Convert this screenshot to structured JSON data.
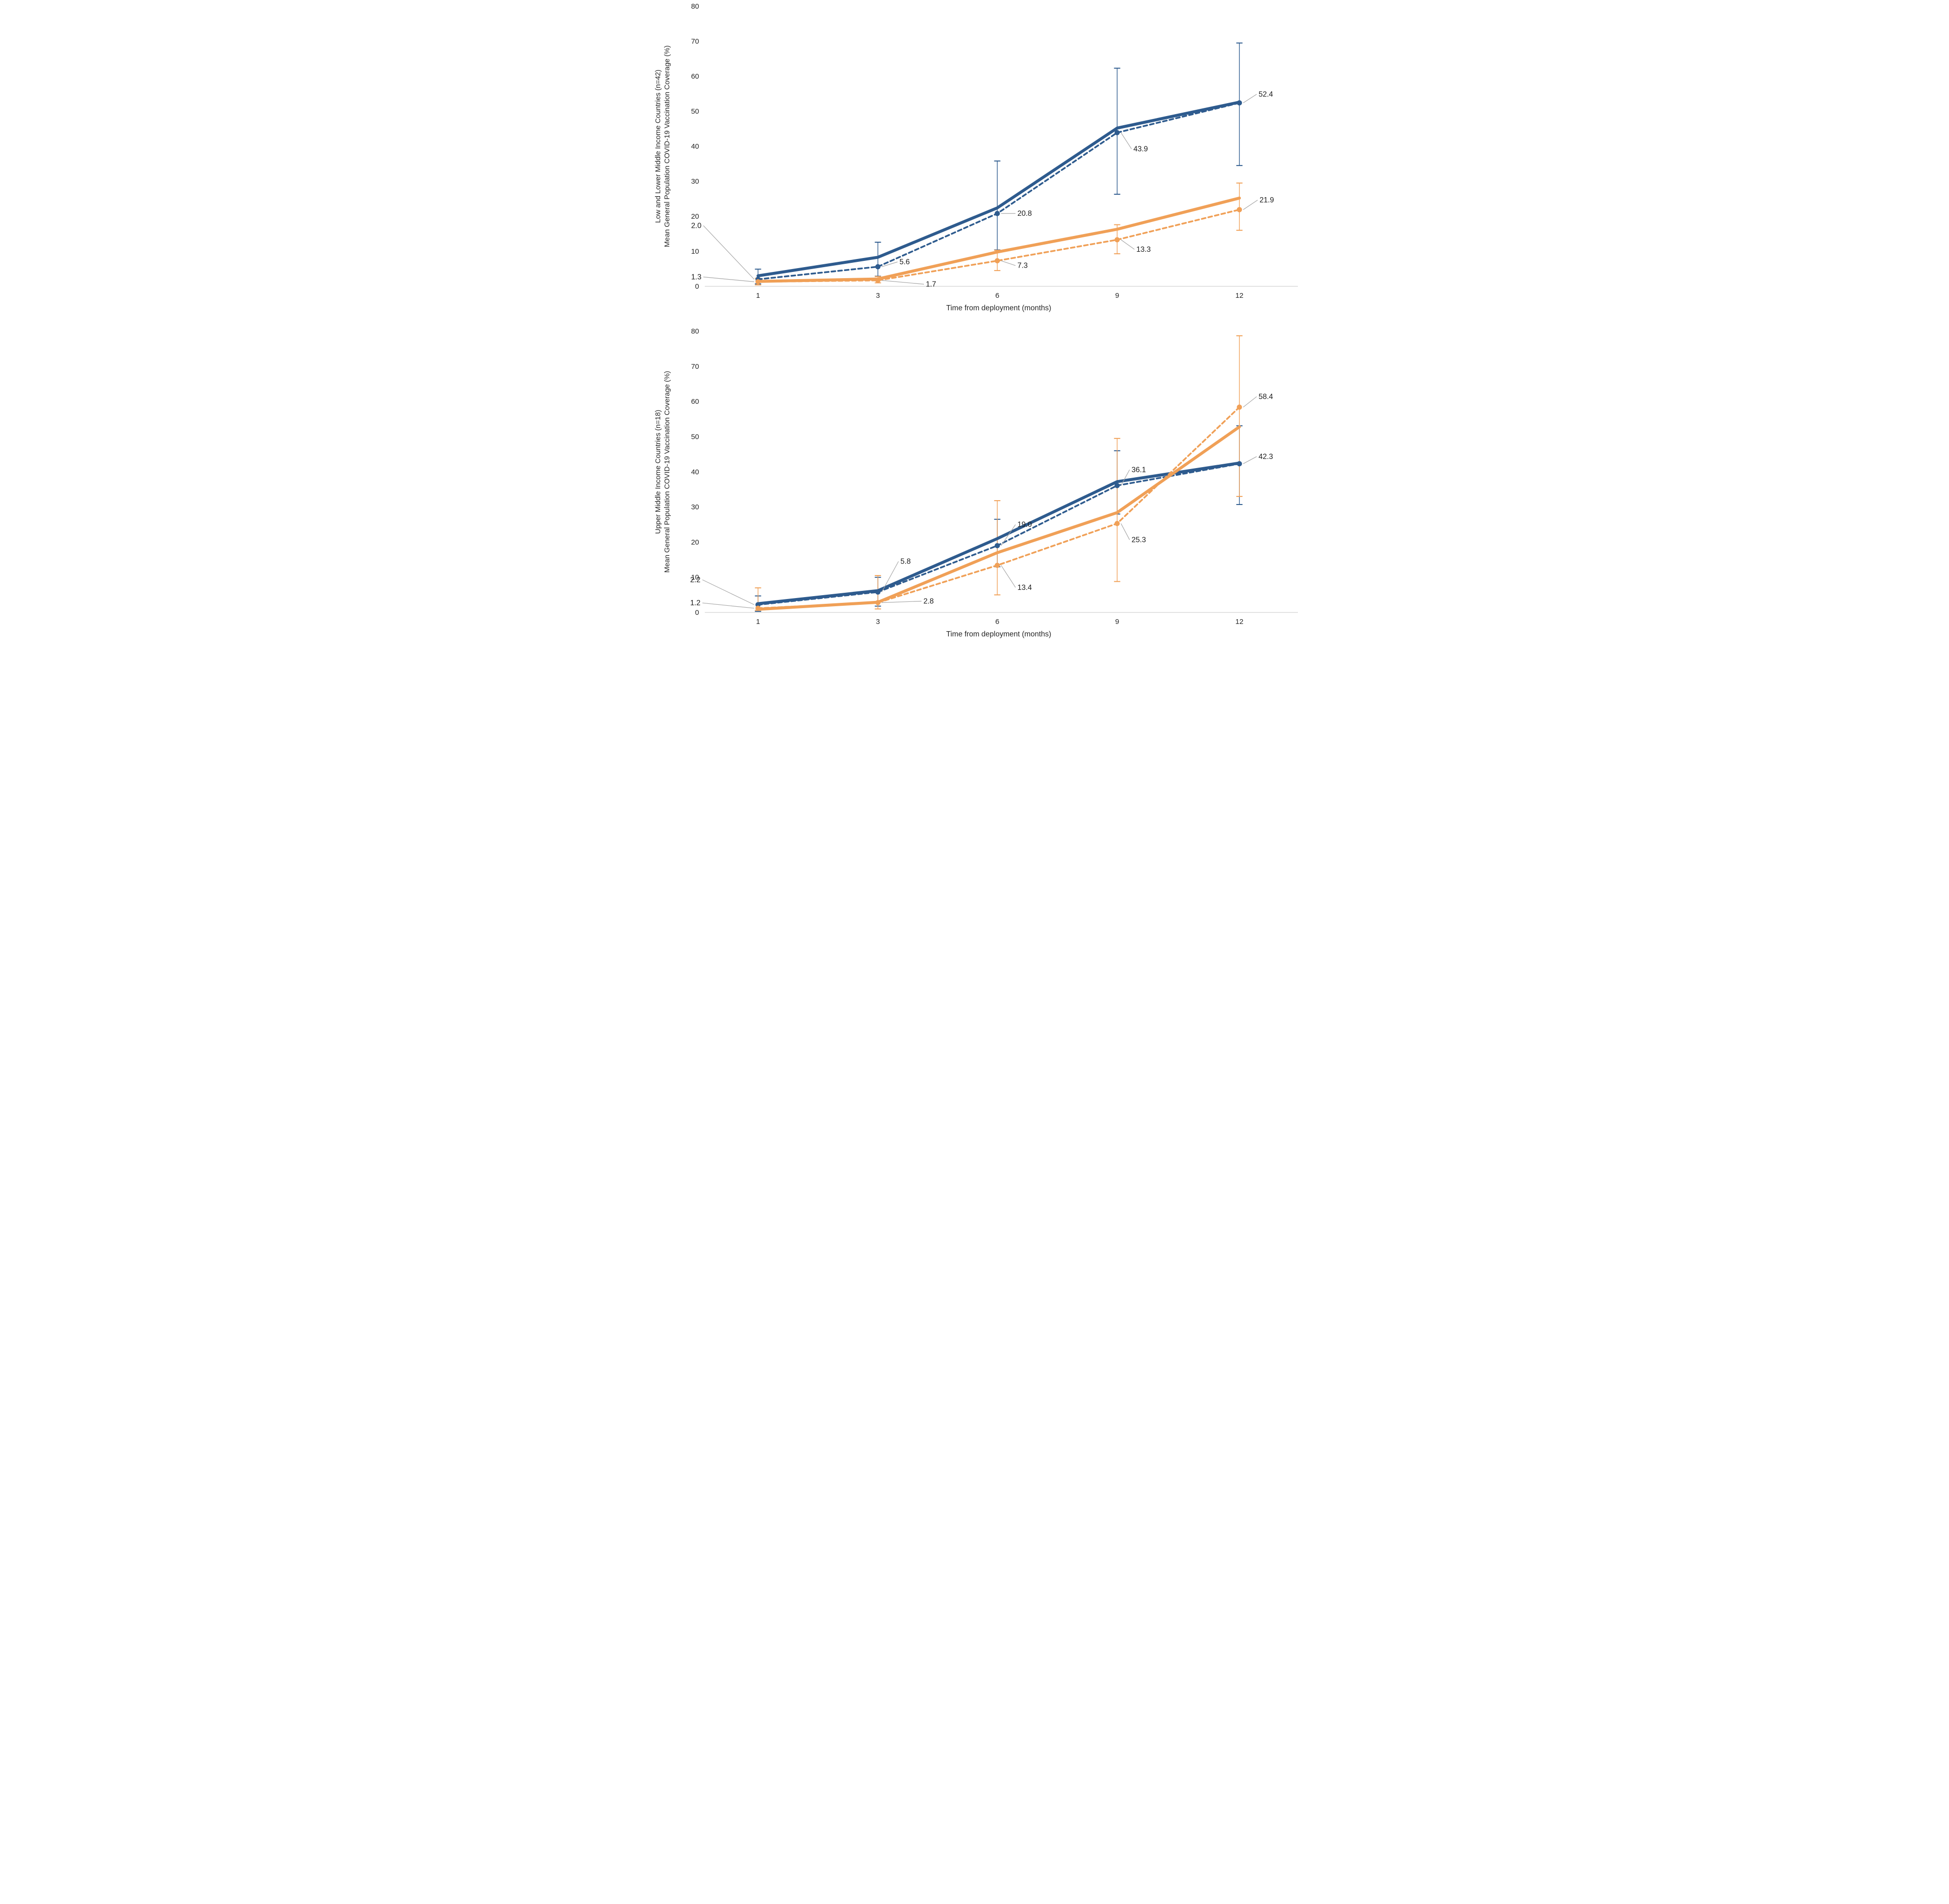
{
  "colors": {
    "blue": "#2E5B8E",
    "orange": "#F0A057",
    "label_text": "#1a1a1a",
    "tick_text": "#262626",
    "axis_line": "#D9D9D9",
    "leader_line": "#A6A6A6",
    "background": "#FFFFFF"
  },
  "chart_data": [
    {
      "type": "line",
      "id": "llmic",
      "y_axis_label_lines": [
        "Low and Lower Middle Income Countries (n=42)",
        "Mean General Population COVID-19 Vaccination Coverage (%)"
      ],
      "x_axis_title": "Time from deployment (months)",
      "categories": [
        "1",
        "3",
        "6",
        "9",
        "12"
      ],
      "x_values_months": [
        1,
        3,
        6,
        9,
        12
      ],
      "ylim": [
        0,
        80
      ],
      "y_ticks": [
        "0",
        "10",
        "20",
        "30",
        "40",
        "50",
        "60",
        "70",
        "80"
      ],
      "grid": false,
      "legend_position": "none",
      "series": [
        {
          "name": "blue-solid",
          "color_key": "blue",
          "style": "solid",
          "marker": false,
          "values": [
            3.0,
            8.3,
            22.4,
            45.2,
            52.6
          ]
        },
        {
          "name": "blue-dashed",
          "color_key": "blue",
          "style": "dashed",
          "marker": true,
          "values": [
            2.0,
            5.6,
            20.8,
            43.9,
            52.4
          ],
          "labels": [
            "2.0",
            "5.6",
            "20.8",
            "43.9",
            "52.4"
          ],
          "label_offsets": [
            [
              -118,
              -112
            ],
            [
              45,
              -10
            ],
            [
              42,
              0
            ],
            [
              34,
              34
            ],
            [
              40,
              -18
            ]
          ]
        },
        {
          "name": "orange-solid",
          "color_key": "orange",
          "style": "solid",
          "marker": false,
          "values": [
            1.4,
            2.1,
            9.8,
            16.3,
            25.2
          ]
        },
        {
          "name": "orange-dashed",
          "color_key": "orange",
          "style": "dashed",
          "marker": true,
          "values": [
            1.3,
            1.7,
            7.3,
            13.3,
            21.9
          ],
          "labels": [
            "1.3",
            "1.7",
            "7.3",
            "13.3",
            "21.9"
          ],
          "label_offsets": [
            [
              -118,
              -10
            ],
            [
              100,
              8
            ],
            [
              42,
              10
            ],
            [
              40,
              20
            ],
            [
              42,
              -20
            ]
          ]
        }
      ],
      "error_bars": [
        {
          "color_key": "blue",
          "ranges": [
            [
              0.7,
              4.9
            ],
            [
              2.9,
              12.6
            ],
            [
              10.4,
              35.8
            ],
            [
              26.3,
              62.3
            ],
            [
              34.5,
              69.5
            ]
          ]
        },
        {
          "color_key": "orange",
          "ranges": [
            [
              0.4,
              2.3
            ],
            [
              1.0,
              2.8
            ],
            [
              4.5,
              10.3
            ],
            [
              9.3,
              17.6
            ],
            [
              16.0,
              29.5
            ]
          ]
        }
      ]
    },
    {
      "type": "line",
      "id": "umic",
      "y_axis_label_lines": [
        "Upper Middle Income Countries (n=18)",
        "Mean General Population COVID-19 Vaccination Coverage (%)"
      ],
      "x_axis_title": "Time from deployment (months)",
      "categories": [
        "1",
        "3",
        "6",
        "9",
        "12"
      ],
      "x_values_months": [
        1,
        3,
        6,
        9,
        12
      ],
      "ylim": [
        0,
        80
      ],
      "y_ticks": [
        "0",
        "10",
        "20",
        "30",
        "40",
        "50",
        "60",
        "70",
        "80"
      ],
      "grid": false,
      "legend_position": "none",
      "series": [
        {
          "name": "blue-solid",
          "color_key": "blue",
          "style": "solid",
          "marker": false,
          "values": [
            2.5,
            6.2,
            21.0,
            37.2,
            42.5
          ]
        },
        {
          "name": "blue-dashed",
          "color_key": "blue",
          "style": "dashed",
          "marker": true,
          "values": [
            2.2,
            5.8,
            19.0,
            36.1,
            42.3
          ],
          "labels": [
            "2.2",
            "5.8",
            "19.0",
            "36.1",
            "42.3"
          ],
          "label_offsets": [
            [
              -120,
              -52
            ],
            [
              47,
              -64
            ],
            [
              42,
              -44
            ],
            [
              30,
              -33
            ],
            [
              40,
              -15
            ]
          ]
        },
        {
          "name": "orange-solid",
          "color_key": "orange",
          "style": "solid",
          "marker": false,
          "values": [
            0.9,
            2.9,
            17.0,
            28.4,
            52.8
          ]
        },
        {
          "name": "orange-dashed",
          "color_key": "orange",
          "style": "dashed",
          "marker": true,
          "values": [
            1.2,
            2.8,
            13.4,
            25.3,
            58.4
          ],
          "labels": [
            "1.2",
            "2.8",
            "13.4",
            "25.3",
            "58.4"
          ],
          "label_offsets": [
            [
              -120,
              -11
            ],
            [
              95,
              -3
            ],
            [
              42,
              46
            ],
            [
              30,
              34
            ],
            [
              40,
              -22
            ]
          ]
        }
      ],
      "error_bars": [
        {
          "color_key": "blue",
          "ranges": [
            [
              0.3,
              4.7
            ],
            [
              1.8,
              10.0
            ],
            [
              13.0,
              26.5
            ],
            [
              28.0,
              46.0
            ],
            [
              30.7,
              53.1
            ]
          ]
        },
        {
          "color_key": "orange",
          "ranges": [
            [
              0.6,
              7.0
            ],
            [
              1.0,
              10.5
            ],
            [
              5.0,
              31.8
            ],
            [
              8.8,
              49.5
            ],
            [
              33.0,
              78.7
            ]
          ]
        }
      ]
    }
  ]
}
